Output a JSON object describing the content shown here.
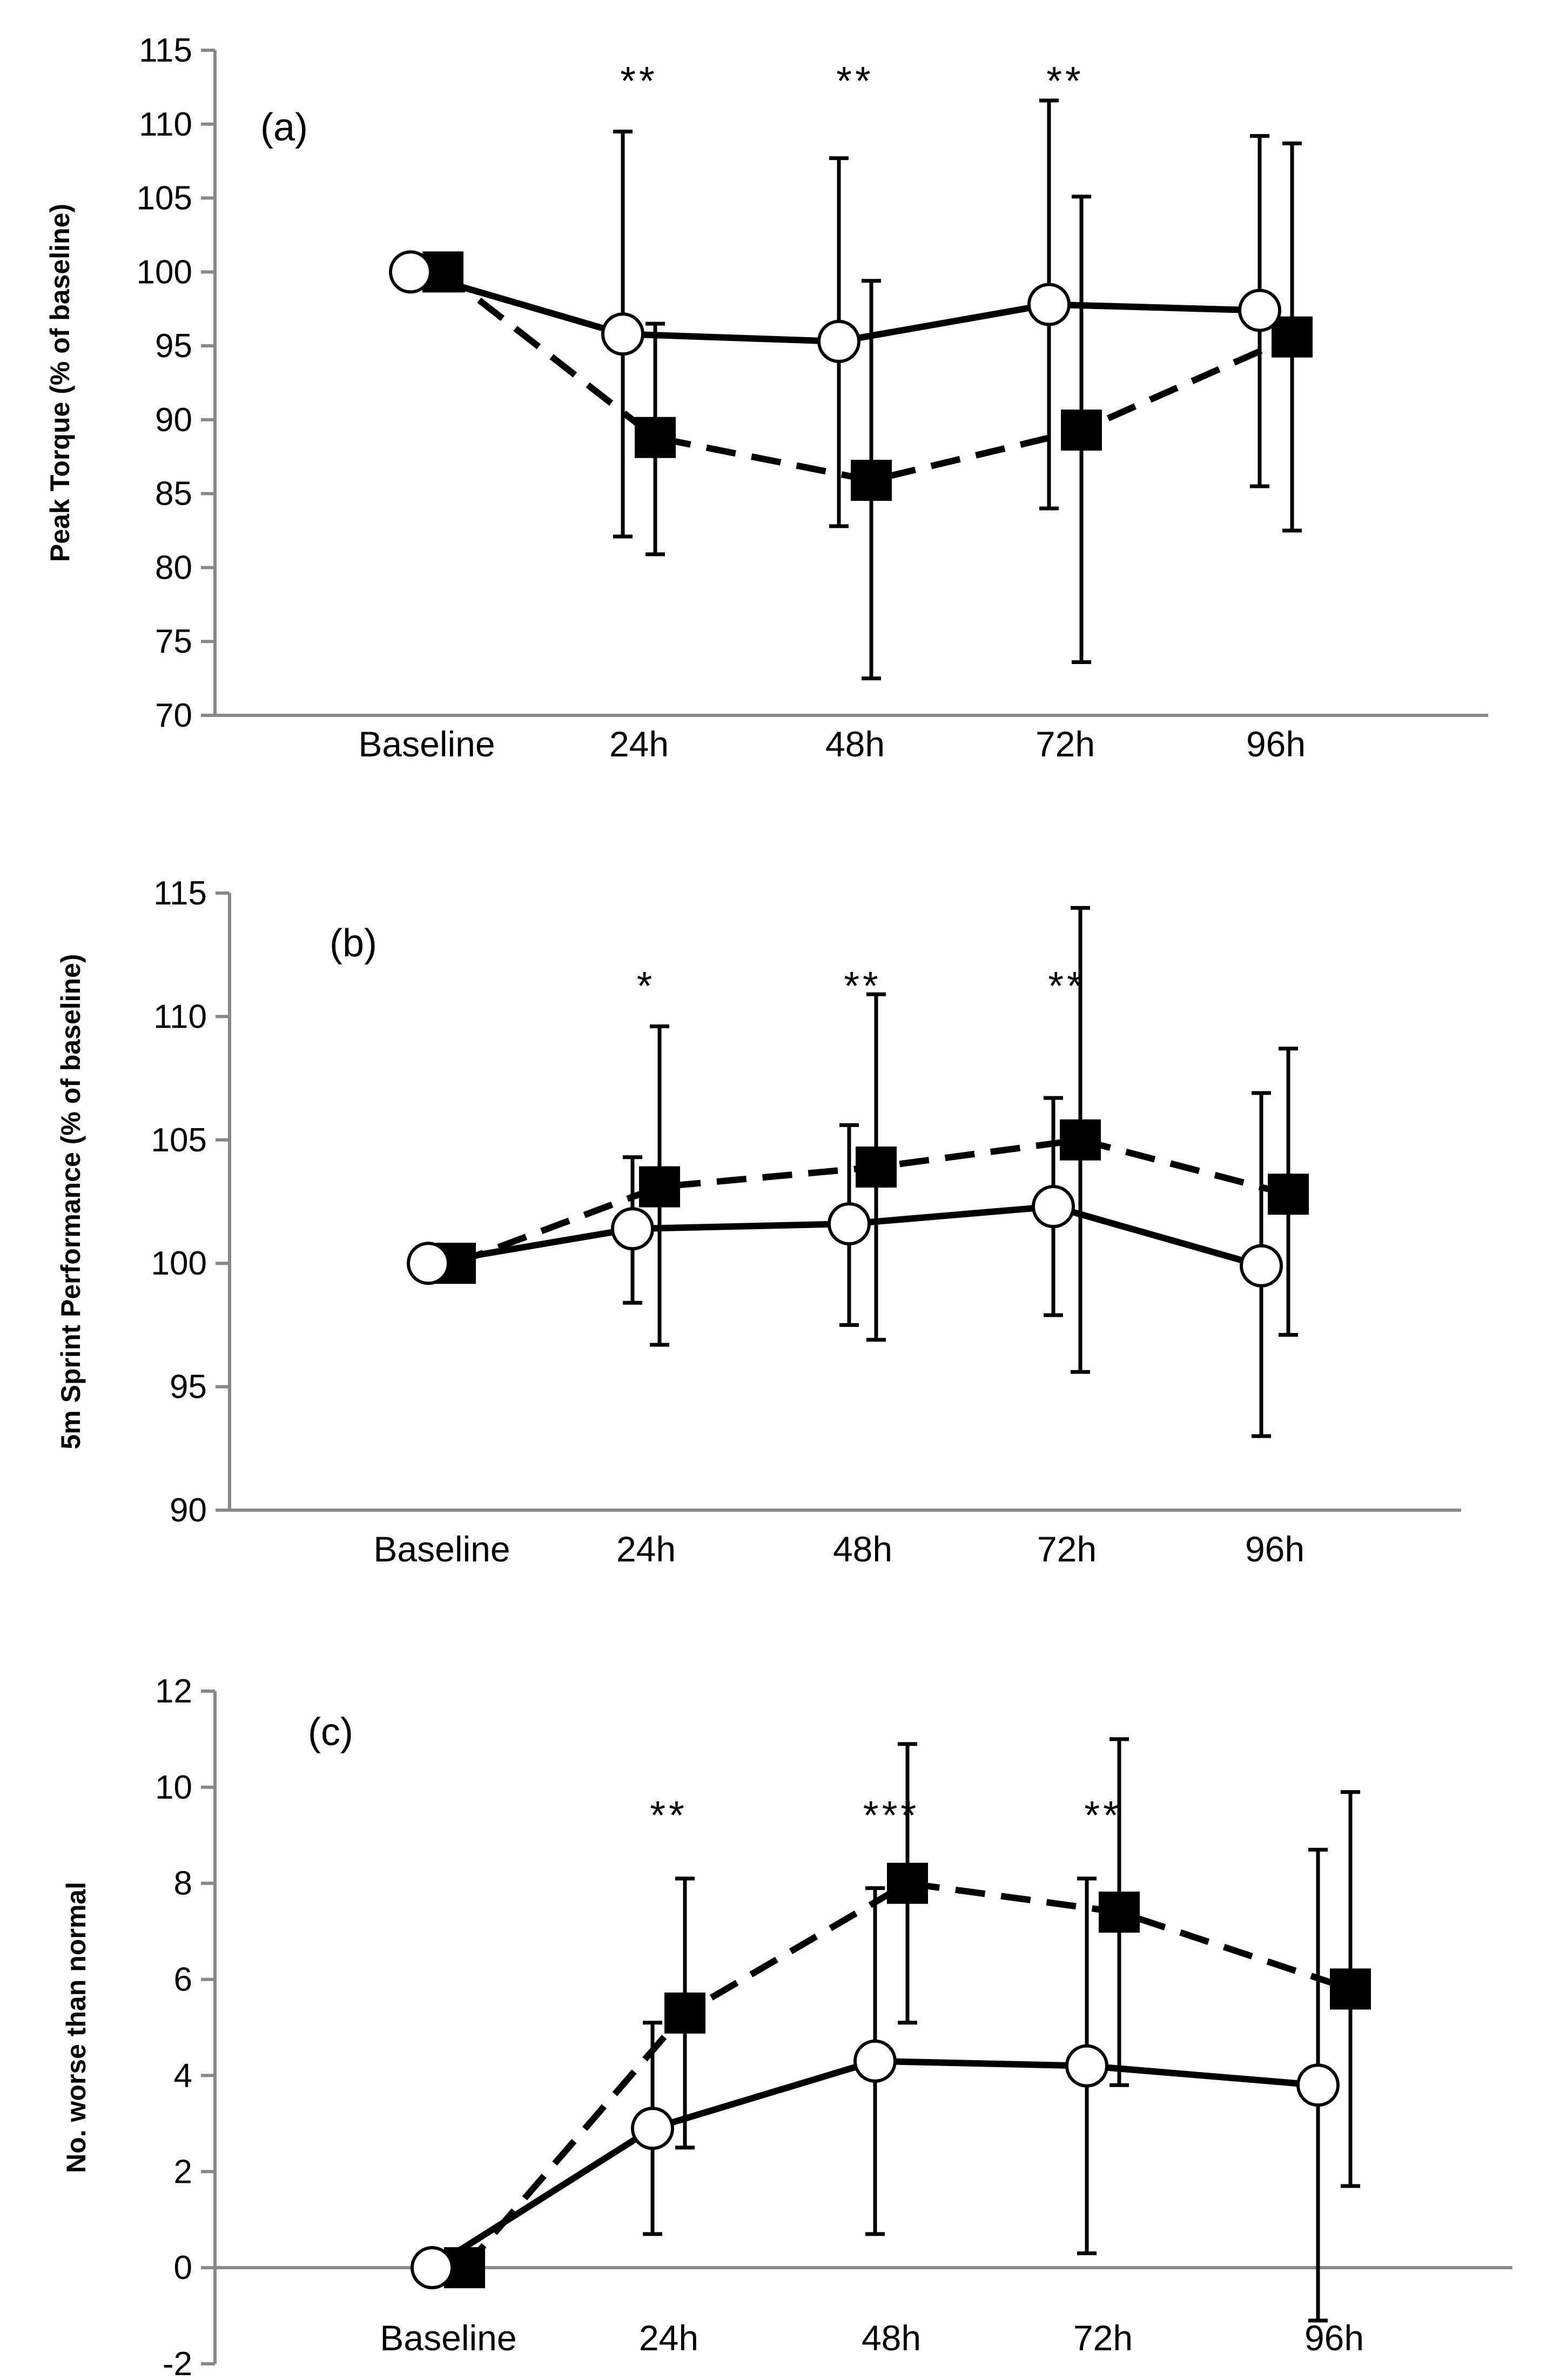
{
  "chart_data": [
    {
      "type": "line",
      "panel_label": "(a)",
      "ylabel": "Peak Torque (% of baseline)",
      "xlabel": "",
      "categories": [
        "Baseline",
        "24h",
        "48h",
        "72h",
        "96h"
      ],
      "ylim": [
        70,
        115
      ],
      "yticks": [
        "70",
        "75",
        "80",
        "85",
        "90",
        "95",
        "100",
        "105",
        "110",
        "115"
      ],
      "significance": [
        "",
        "**",
        "**",
        "**",
        ""
      ],
      "series": [
        {
          "name": "Open circle (solid line)",
          "marker": "circle-open",
          "line": "solid",
          "values": [
            100,
            95.8,
            95.3,
            97.8,
            97.4
          ],
          "error_upper": [
            100,
            109.5,
            107.7,
            111.6,
            109.2
          ],
          "error_lower": [
            100,
            82.1,
            82.8,
            84.0,
            85.5
          ]
        },
        {
          "name": "Filled square (dashed line)",
          "marker": "square-filled",
          "line": "dashed",
          "values": [
            100,
            88.8,
            85.9,
            89.3,
            95.6
          ],
          "error_upper": [
            100,
            96.5,
            99.4,
            105.1,
            108.7
          ],
          "error_lower": [
            100,
            80.9,
            72.5,
            73.6,
            82.5
          ]
        }
      ]
    },
    {
      "type": "line",
      "panel_label": "(b)",
      "ylabel": "5m Sprint Performance (% of baseline)",
      "xlabel": "",
      "categories": [
        "Baseline",
        "24h",
        "48h",
        "72h",
        "96h"
      ],
      "ylim": [
        90,
        115
      ],
      "yticks": [
        "90",
        "95",
        "100",
        "105",
        "110",
        "115"
      ],
      "significance": [
        "",
        "*",
        "**",
        "**",
        ""
      ],
      "series": [
        {
          "name": "Open circle (solid line)",
          "marker": "circle-open",
          "line": "solid",
          "values": [
            100,
            101.4,
            101.6,
            102.3,
            99.9
          ],
          "error_upper": [
            100,
            104.3,
            105.6,
            106.7,
            106.9
          ],
          "error_lower": [
            100,
            98.4,
            97.5,
            97.9,
            93.0
          ]
        },
        {
          "name": "Filled square (dashed line)",
          "marker": "square-filled",
          "line": "dashed",
          "values": [
            100,
            103.1,
            103.9,
            105.0,
            102.8
          ],
          "error_upper": [
            100,
            109.6,
            110.9,
            114.4,
            108.7
          ],
          "error_lower": [
            100,
            96.7,
            96.9,
            95.6,
            97.1
          ]
        }
      ]
    },
    {
      "type": "line",
      "panel_label": "(c)",
      "ylabel": "No. worse than normal",
      "xlabel": "",
      "categories": [
        "Baseline",
        "24h",
        "48h",
        "72h",
        "96h"
      ],
      "ylim": [
        -2,
        12
      ],
      "yticks": [
        "-2",
        "0",
        "2",
        "4",
        "6",
        "8",
        "10",
        "12"
      ],
      "significance": [
        "",
        "**",
        "***",
        "**",
        ""
      ],
      "series": [
        {
          "name": "Open circle (solid line)",
          "marker": "circle-open",
          "line": "solid",
          "values": [
            0,
            2.9,
            4.3,
            4.2,
            3.8
          ],
          "error_upper": [
            0,
            5.1,
            7.9,
            8.1,
            8.7
          ],
          "error_lower": [
            0,
            0.7,
            0.7,
            0.3,
            -1.1
          ]
        },
        {
          "name": "Filled square (dashed line)",
          "marker": "square-filled",
          "line": "dashed",
          "values": [
            0,
            5.3,
            8.0,
            7.4,
            5.8
          ],
          "error_upper": [
            0,
            8.1,
            10.9,
            11.0,
            9.9
          ],
          "error_lower": [
            0,
            2.5,
            5.1,
            3.8,
            1.7
          ]
        }
      ]
    }
  ]
}
